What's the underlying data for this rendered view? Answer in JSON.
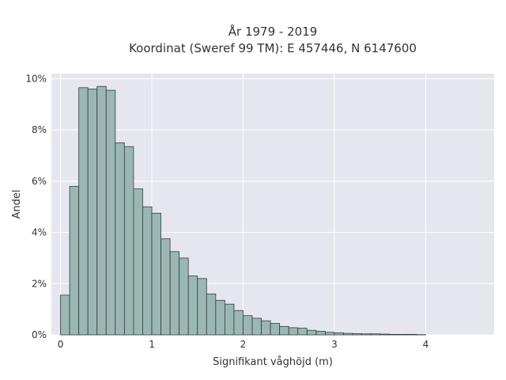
{
  "chart_data": {
    "type": "bar",
    "title_line1": "År 1979 - 2019",
    "title_line2": "Koordinat (Sweref 99 TM): E 457446, N 6147600",
    "xlabel": "Signifikant våghöjd (m)",
    "ylabel": "Andel",
    "x_ticks": [
      "0",
      "1",
      "2",
      "3",
      "4"
    ],
    "y_ticks": [
      "0%",
      "2%",
      "4%",
      "6%",
      "8%",
      "10%"
    ],
    "xlim": [
      -0.1,
      4.75
    ],
    "ylim": [
      0,
      10.2
    ],
    "grid": true,
    "bin_width": 0.1,
    "bin_start": 0.0,
    "values": [
      1.55,
      5.8,
      9.65,
      9.6,
      9.7,
      9.55,
      7.5,
      7.35,
      5.7,
      5.0,
      4.75,
      3.75,
      3.25,
      3.0,
      2.3,
      2.2,
      1.6,
      1.35,
      1.2,
      0.95,
      0.75,
      0.65,
      0.55,
      0.45,
      0.33,
      0.28,
      0.26,
      0.18,
      0.14,
      0.1,
      0.08,
      0.06,
      0.05,
      0.04,
      0.04,
      0.03,
      0.02,
      0.02,
      0.02,
      0.01
    ],
    "colors": {
      "bar_fill": "#9bb7b4",
      "bar_stroke": "#2f3f3c",
      "plot_bg": "#e6e6ee",
      "grid": "#ffffff"
    }
  }
}
